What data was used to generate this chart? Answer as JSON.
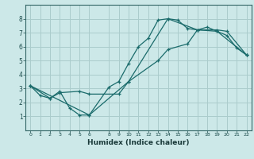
{
  "xlabel": "Humidex (Indice chaleur)",
  "bg_color": "#cce8e8",
  "grid_color": "#aacccc",
  "line_color": "#1a6b6b",
  "xlim": [
    -0.5,
    22.5
  ],
  "ylim": [
    0,
    9
  ],
  "xticks": [
    0,
    1,
    2,
    3,
    4,
    5,
    6,
    8,
    9,
    10,
    11,
    12,
    13,
    14,
    15,
    16,
    17,
    18,
    19,
    20,
    21,
    22
  ],
  "yticks": [
    1,
    2,
    3,
    4,
    5,
    6,
    7,
    8
  ],
  "line1": {
    "x": [
      0,
      1,
      2,
      3,
      4,
      5,
      6,
      8,
      9,
      10,
      11,
      12,
      13,
      14,
      15,
      16,
      17,
      18,
      19,
      20,
      21,
      22
    ],
    "y": [
      3.2,
      2.5,
      2.3,
      2.8,
      1.6,
      1.1,
      1.1,
      3.1,
      3.5,
      4.8,
      6.0,
      6.6,
      7.9,
      8.0,
      7.9,
      7.3,
      7.2,
      7.4,
      7.1,
      6.8,
      5.9,
      5.4
    ]
  },
  "line2": {
    "x": [
      0,
      2,
      3,
      5,
      6,
      9,
      10,
      13,
      14,
      16,
      17,
      19,
      20,
      22
    ],
    "y": [
      3.2,
      2.3,
      2.7,
      2.8,
      2.6,
      2.6,
      3.5,
      5.0,
      5.8,
      6.2,
      7.2,
      7.2,
      7.1,
      5.4
    ]
  },
  "line3": {
    "x": [
      0,
      6,
      10,
      14,
      17,
      19,
      22
    ],
    "y": [
      3.2,
      1.1,
      3.5,
      8.0,
      7.2,
      7.1,
      5.4
    ]
  }
}
